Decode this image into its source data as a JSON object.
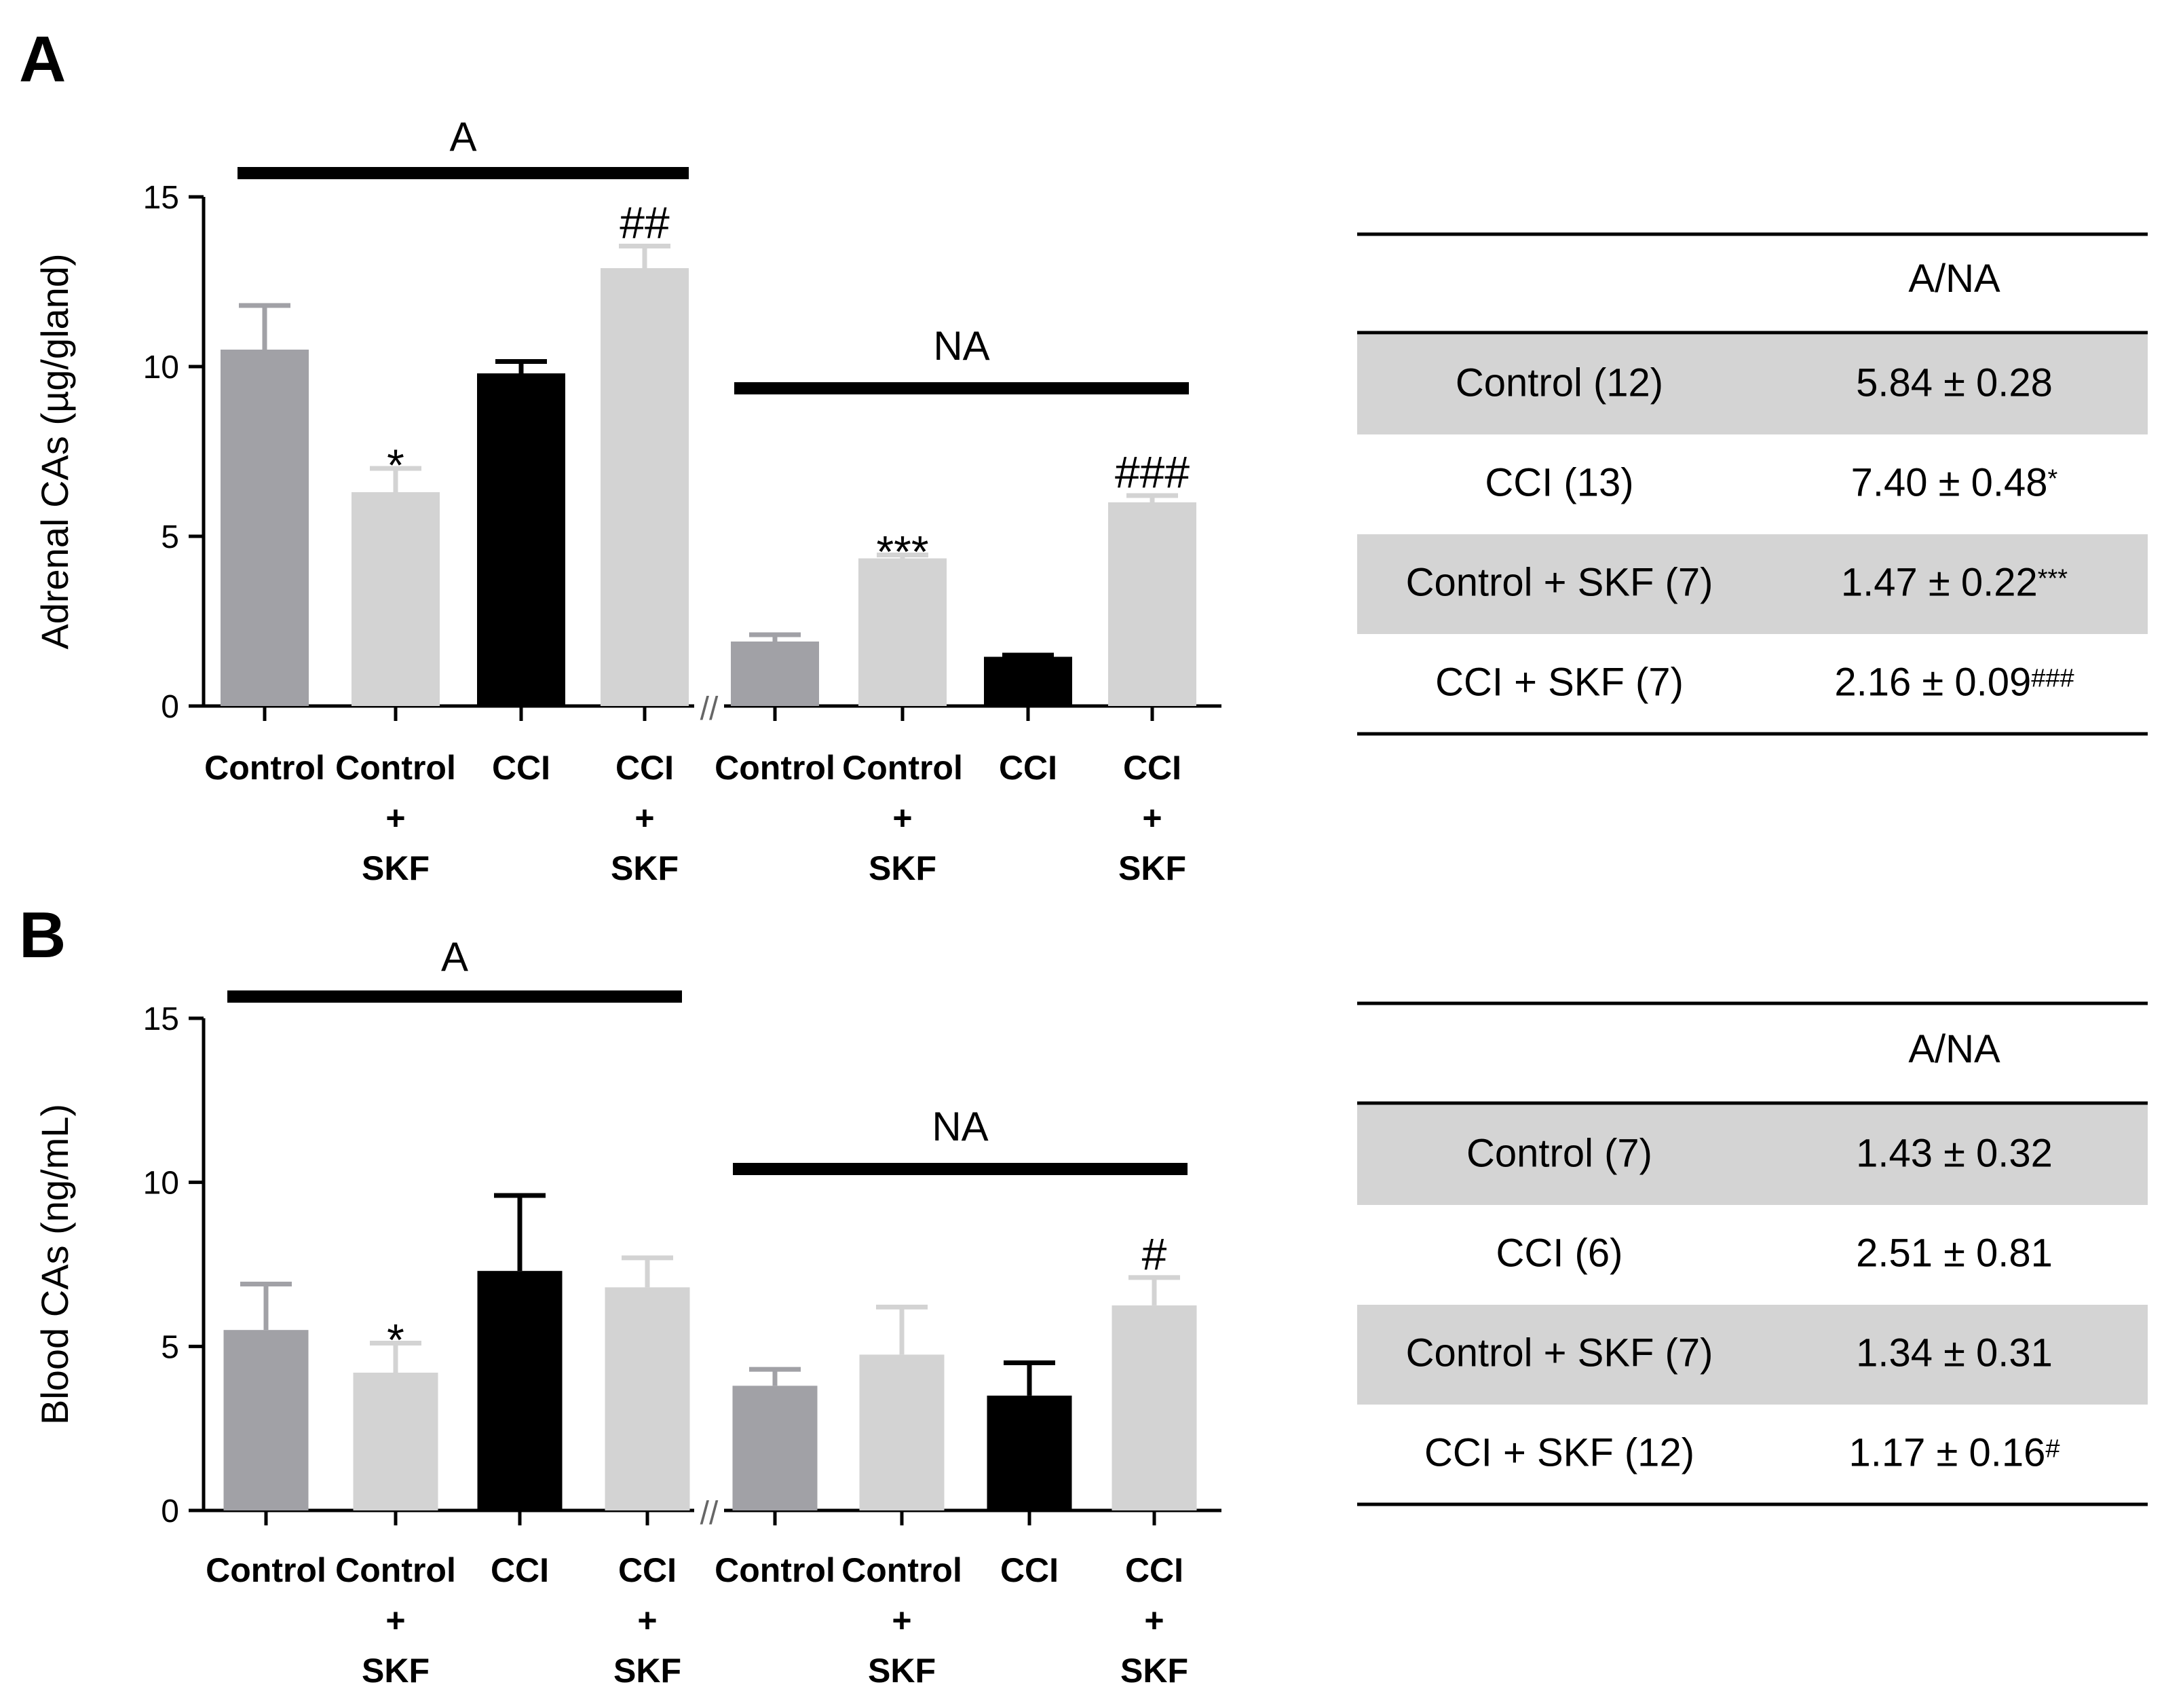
{
  "colors": {
    "control": "#a1a1a6",
    "control_skf": "#d3d3d3",
    "cci": "#000000",
    "cci_skf": "#d3d3d3",
    "table_shade": "#d4d4d4"
  },
  "chart_data": [
    {
      "panel": "A",
      "type": "bar",
      "ylabel": "Adrenal CAs (µg/gland)",
      "ylim": [
        0,
        15
      ],
      "yticks": [
        0,
        5,
        10,
        15
      ],
      "groups": [
        {
          "label": "A",
          "bars": [
            {
              "category": [
                "Control"
              ],
              "value": 10.5,
              "error": 1.3,
              "color_key": "control",
              "annotation": ""
            },
            {
              "category": [
                "Control",
                "+",
                "SKF"
              ],
              "value": 6.3,
              "error": 0.7,
              "color_key": "control_skf",
              "annotation": "*"
            },
            {
              "category": [
                "CCI"
              ],
              "value": 9.8,
              "error": 0.35,
              "color_key": "cci",
              "annotation": ""
            },
            {
              "category": [
                "CCI",
                "+",
                "SKF"
              ],
              "value": 12.9,
              "error": 0.65,
              "color_key": "cci_skf",
              "annotation": "##"
            }
          ]
        },
        {
          "label": "NA",
          "bars": [
            {
              "category": [
                "Control"
              ],
              "value": 1.9,
              "error": 0.2,
              "color_key": "control",
              "annotation": ""
            },
            {
              "category": [
                "Control",
                "+",
                "SKF"
              ],
              "value": 4.35,
              "error": 0.1,
              "color_key": "control_skf",
              "annotation": "***"
            },
            {
              "category": [
                "CCI"
              ],
              "value": 1.45,
              "error": 0.05,
              "color_key": "cci",
              "annotation": ""
            },
            {
              "category": [
                "CCI",
                "+",
                "SKF"
              ],
              "value": 6.0,
              "error": 0.2,
              "color_key": "cci_skf",
              "annotation": "###"
            }
          ]
        }
      ],
      "axis_break": "//",
      "table": {
        "header": "A/NA",
        "rows": [
          {
            "group": "Control (12)",
            "value": "5.84 ± 0.28",
            "sup": "",
            "shaded": true
          },
          {
            "group": "CCI (13)",
            "value": "7.40 ± 0.48",
            "sup": "*",
            "shaded": false
          },
          {
            "group": "Control + SKF (7)",
            "value": "1.47 ± 0.22",
            "sup": "***",
            "shaded": true
          },
          {
            "group": "CCI + SKF (7)",
            "value": "2.16 ± 0.09",
            "sup": "###",
            "shaded": false
          }
        ]
      }
    },
    {
      "panel": "B",
      "type": "bar",
      "ylabel": "Blood CAs (ng/mL)",
      "ylim": [
        0,
        15
      ],
      "yticks": [
        0,
        5,
        10,
        15
      ],
      "groups": [
        {
          "label": "A",
          "bars": [
            {
              "category": [
                "Control"
              ],
              "value": 5.5,
              "error": 1.4,
              "color_key": "control",
              "annotation": ""
            },
            {
              "category": [
                "Control",
                "+",
                "SKF"
              ],
              "value": 4.2,
              "error": 0.9,
              "color_key": "control_skf",
              "annotation": "*"
            },
            {
              "category": [
                "CCI"
              ],
              "value": 7.3,
              "error": 2.3,
              "color_key": "cci",
              "annotation": ""
            },
            {
              "category": [
                "CCI",
                "+",
                "SKF"
              ],
              "value": 6.8,
              "error": 0.9,
              "color_key": "cci_skf",
              "annotation": ""
            }
          ]
        },
        {
          "label": "NA",
          "bars": [
            {
              "category": [
                "Control"
              ],
              "value": 3.8,
              "error": 0.5,
              "color_key": "control",
              "annotation": ""
            },
            {
              "category": [
                "Control",
                "+",
                "SKF"
              ],
              "value": 4.75,
              "error": 1.45,
              "color_key": "control_skf",
              "annotation": ""
            },
            {
              "category": [
                "CCI"
              ],
              "value": 3.5,
              "error": 1.0,
              "color_key": "cci",
              "annotation": ""
            },
            {
              "category": [
                "CCI",
                "+",
                "SKF"
              ],
              "value": 6.25,
              "error": 0.85,
              "color_key": "cci_skf",
              "annotation": "#"
            }
          ]
        }
      ],
      "axis_break": "//",
      "table": {
        "header": "A/NA",
        "rows": [
          {
            "group": "Control (7)",
            "value": "1.43 ± 0.32",
            "sup": "",
            "shaded": true
          },
          {
            "group": "CCI (6)",
            "value": "2.51 ± 0.81",
            "sup": "",
            "shaded": false
          },
          {
            "group": "Control + SKF (7)",
            "value": "1.34 ± 0.31",
            "sup": "",
            "shaded": true
          },
          {
            "group": "CCI + SKF (12)",
            "value": "1.17 ± 0.16",
            "sup": "#",
            "shaded": false
          }
        ]
      }
    }
  ]
}
